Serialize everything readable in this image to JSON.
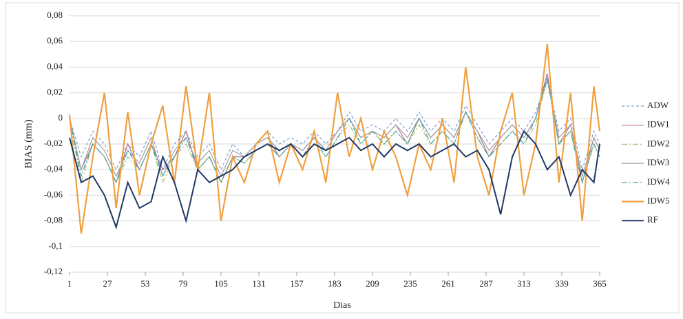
{
  "chart_data": {
    "type": "line",
    "ylabel": "BIAS (mm)",
    "xlabel": "Dias",
    "x": [
      1,
      9,
      17,
      25,
      33,
      41,
      49,
      57,
      65,
      73,
      81,
      89,
      97,
      105,
      113,
      121,
      129,
      137,
      145,
      153,
      161,
      169,
      177,
      185,
      193,
      201,
      209,
      217,
      225,
      233,
      241,
      249,
      257,
      265,
      273,
      281,
      289,
      297,
      305,
      313,
      321,
      329,
      337,
      345,
      353,
      361,
      365
    ],
    "xlim": [
      1,
      365
    ],
    "xticks": [
      1,
      27,
      53,
      79,
      105,
      131,
      157,
      183,
      209,
      235,
      261,
      287,
      313,
      339,
      365
    ],
    "ylim": [
      -0.12,
      0.08
    ],
    "yticks": [
      {
        "value": -0.12,
        "label": "-0,12"
      },
      {
        "value": -0.1,
        "label": "-0,1"
      },
      {
        "value": -0.08,
        "label": "-0,08"
      },
      {
        "value": -0.06,
        "label": "-0,06"
      },
      {
        "value": -0.04,
        "label": "-0,04"
      },
      {
        "value": -0.02,
        "label": "-0,02"
      },
      0,
      {
        "value": 0.02,
        "label": "0,02"
      },
      {
        "value": 0.04,
        "label": "0,04"
      },
      {
        "value": 0.06,
        "label": "0,06"
      },
      {
        "value": 0.08,
        "label": "0,08"
      }
    ],
    "grid": true,
    "legend": "right",
    "series": [
      {
        "name": "ADW",
        "color": "#7f9fd8",
        "dash": "4,3",
        "values": [
          0.0,
          -0.03,
          -0.01,
          -0.02,
          -0.04,
          -0.02,
          -0.03,
          -0.01,
          -0.04,
          -0.02,
          -0.01,
          -0.03,
          -0.02,
          -0.04,
          -0.02,
          -0.03,
          -0.02,
          -0.01,
          -0.02,
          -0.015,
          -0.02,
          -0.01,
          -0.02,
          -0.01,
          0.005,
          -0.01,
          -0.005,
          -0.01,
          0.0,
          -0.01,
          0.005,
          -0.01,
          0.0,
          -0.01,
          0.01,
          -0.005,
          -0.02,
          -0.01,
          0.0,
          -0.01,
          0.005,
          0.03,
          -0.01,
          0.0,
          -0.04,
          -0.01,
          -0.02
        ]
      },
      {
        "name": "IDW1",
        "color": "#b07090",
        "dash": "",
        "values": [
          0.0,
          -0.04,
          -0.02,
          -0.03,
          -0.05,
          -0.02,
          -0.04,
          -0.02,
          -0.04,
          -0.03,
          -0.01,
          -0.04,
          -0.03,
          -0.05,
          -0.03,
          -0.03,
          -0.02,
          -0.015,
          -0.03,
          -0.02,
          -0.025,
          -0.015,
          -0.025,
          -0.01,
          0.0,
          -0.015,
          -0.01,
          -0.015,
          -0.005,
          -0.02,
          0.0,
          -0.015,
          -0.005,
          -0.015,
          0.005,
          -0.01,
          -0.03,
          -0.015,
          -0.005,
          -0.015,
          0.0,
          0.035,
          -0.02,
          -0.005,
          -0.05,
          -0.015,
          -0.025
        ]
      },
      {
        "name": "IDW2",
        "color": "#a8c070",
        "dash": "8,3,2,3",
        "values": [
          0.0,
          -0.05,
          -0.02,
          -0.03,
          -0.05,
          -0.03,
          -0.04,
          -0.02,
          -0.05,
          -0.03,
          -0.02,
          -0.04,
          -0.03,
          -0.05,
          -0.03,
          -0.035,
          -0.025,
          -0.02,
          -0.03,
          -0.02,
          -0.03,
          -0.02,
          -0.03,
          -0.015,
          -0.005,
          -0.02,
          -0.01,
          -0.02,
          -0.01,
          -0.02,
          -0.005,
          -0.02,
          -0.01,
          -0.02,
          0.005,
          -0.015,
          -0.03,
          -0.02,
          -0.01,
          -0.02,
          -0.005,
          0.03,
          -0.02,
          -0.01,
          -0.05,
          -0.02,
          -0.03
        ]
      },
      {
        "name": "IDW3",
        "color": "#a0a0a0",
        "dash": "",
        "values": [
          0.0,
          -0.04,
          -0.015,
          -0.025,
          -0.045,
          -0.025,
          -0.035,
          -0.015,
          -0.045,
          -0.025,
          -0.015,
          -0.035,
          -0.025,
          -0.045,
          -0.025,
          -0.03,
          -0.02,
          -0.015,
          -0.025,
          -0.02,
          -0.025,
          -0.015,
          -0.025,
          -0.01,
          0.0,
          -0.015,
          -0.01,
          -0.015,
          -0.005,
          -0.015,
          0.0,
          -0.015,
          -0.005,
          -0.015,
          0.005,
          -0.01,
          -0.025,
          -0.015,
          -0.005,
          -0.015,
          0.0,
          0.03,
          -0.015,
          -0.005,
          -0.045,
          -0.015,
          -0.025
        ]
      },
      {
        "name": "IDW4",
        "color": "#40a0a0",
        "dash": "8,3,2,3",
        "values": [
          0.0,
          -0.045,
          -0.02,
          -0.03,
          -0.05,
          -0.025,
          -0.04,
          -0.02,
          -0.045,
          -0.03,
          -0.015,
          -0.04,
          -0.03,
          -0.05,
          -0.03,
          -0.035,
          -0.025,
          -0.02,
          -0.03,
          -0.02,
          -0.03,
          -0.015,
          -0.03,
          -0.015,
          0.0,
          -0.02,
          -0.01,
          -0.02,
          -0.01,
          -0.02,
          0.0,
          -0.02,
          -0.01,
          -0.02,
          0.005,
          -0.015,
          -0.03,
          -0.02,
          -0.01,
          -0.02,
          0.0,
          0.032,
          -0.02,
          -0.01,
          -0.05,
          -0.02,
          -0.03
        ]
      },
      {
        "name": "IDW5",
        "color": "#f0a040",
        "dash": "",
        "width": 2.2,
        "values": [
          0.003,
          -0.09,
          -0.03,
          0.02,
          -0.07,
          0.005,
          -0.06,
          -0.02,
          0.01,
          -0.05,
          0.025,
          -0.04,
          0.02,
          -0.08,
          -0.03,
          -0.05,
          -0.02,
          -0.01,
          -0.05,
          -0.02,
          -0.04,
          -0.01,
          -0.05,
          0.02,
          -0.03,
          0.0,
          -0.04,
          -0.01,
          -0.03,
          -0.06,
          -0.02,
          -0.04,
          0.0,
          -0.05,
          0.04,
          -0.03,
          -0.06,
          -0.01,
          0.02,
          -0.06,
          -0.02,
          0.058,
          -0.05,
          0.02,
          -0.08,
          0.025,
          -0.01
        ]
      },
      {
        "name": "RF",
        "color": "#1f3864",
        "dash": "",
        "width": 2,
        "values": [
          -0.015,
          -0.05,
          -0.045,
          -0.06,
          -0.085,
          -0.05,
          -0.07,
          -0.065,
          -0.03,
          -0.05,
          -0.08,
          -0.04,
          -0.05,
          -0.045,
          -0.04,
          -0.03,
          -0.025,
          -0.02,
          -0.025,
          -0.02,
          -0.03,
          -0.02,
          -0.025,
          -0.02,
          -0.015,
          -0.025,
          -0.02,
          -0.03,
          -0.02,
          -0.025,
          -0.02,
          -0.03,
          -0.025,
          -0.02,
          -0.03,
          -0.025,
          -0.04,
          -0.075,
          -0.03,
          -0.01,
          -0.02,
          -0.04,
          -0.03,
          -0.06,
          -0.04,
          -0.05,
          -0.02
        ]
      }
    ]
  }
}
